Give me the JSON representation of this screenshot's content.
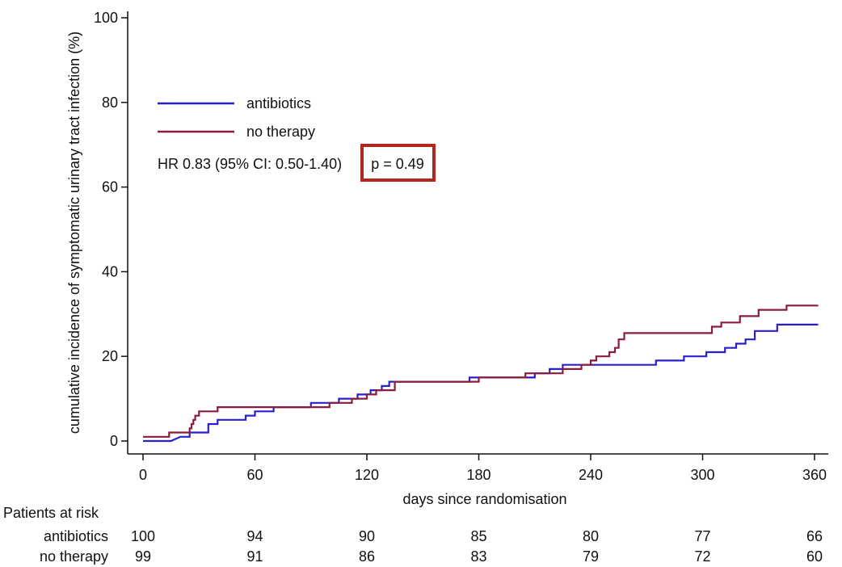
{
  "chart_data": {
    "type": "line",
    "title": "",
    "xlabel": "days since randomisation",
    "ylabel": "cumulative incidence of symptomatic urinary tract infection (%)",
    "xlim": [
      0,
      365
    ],
    "ylim": [
      0,
      100
    ],
    "x_ticks": [
      0,
      60,
      120,
      180,
      240,
      300,
      360
    ],
    "y_ticks": [
      0,
      20,
      40,
      60,
      80,
      100
    ],
    "grid": false,
    "legend_position": "top-left",
    "annotation_text": "HR 0.83 (95% CI: 0.50-1.40)",
    "p_value_text": "p = 0.49",
    "highlight_color": "#b3261e",
    "series": [
      {
        "name": "antibiotics",
        "color": "#2a1fd0",
        "points": [
          [
            0,
            0
          ],
          [
            15,
            0
          ],
          [
            20,
            1
          ],
          [
            25,
            1
          ],
          [
            25,
            2
          ],
          [
            35,
            2
          ],
          [
            35,
            4
          ],
          [
            40,
            4
          ],
          [
            40,
            5
          ],
          [
            55,
            5
          ],
          [
            55,
            6
          ],
          [
            60,
            6
          ],
          [
            60,
            7
          ],
          [
            70,
            7
          ],
          [
            70,
            8
          ],
          [
            90,
            8
          ],
          [
            90,
            9
          ],
          [
            105,
            9
          ],
          [
            105,
            10
          ],
          [
            115,
            10
          ],
          [
            115,
            11
          ],
          [
            122,
            11
          ],
          [
            122,
            12
          ],
          [
            128,
            12
          ],
          [
            128,
            13
          ],
          [
            132,
            13
          ],
          [
            132,
            14
          ],
          [
            175,
            14
          ],
          [
            175,
            15
          ],
          [
            210,
            15
          ],
          [
            210,
            16
          ],
          [
            218,
            16
          ],
          [
            218,
            17
          ],
          [
            225,
            17
          ],
          [
            225,
            18
          ],
          [
            275,
            18
          ],
          [
            275,
            19
          ],
          [
            290,
            19
          ],
          [
            290,
            20
          ],
          [
            302,
            20
          ],
          [
            302,
            21
          ],
          [
            312,
            21
          ],
          [
            312,
            22
          ],
          [
            318,
            22
          ],
          [
            318,
            23
          ],
          [
            323,
            23
          ],
          [
            323,
            24
          ],
          [
            328,
            24
          ],
          [
            328,
            26
          ],
          [
            340,
            26
          ],
          [
            340,
            27.5
          ],
          [
            362,
            27.5
          ]
        ]
      },
      {
        "name": "no therapy",
        "color": "#8b1c3c",
        "points": [
          [
            0,
            1
          ],
          [
            14,
            1
          ],
          [
            14,
            2
          ],
          [
            25,
            2
          ],
          [
            25,
            3
          ],
          [
            26,
            3
          ],
          [
            26,
            4
          ],
          [
            27,
            4
          ],
          [
            27,
            5
          ],
          [
            28,
            5
          ],
          [
            28,
            6
          ],
          [
            30,
            6
          ],
          [
            30,
            7
          ],
          [
            40,
            7
          ],
          [
            40,
            8
          ],
          [
            100,
            8
          ],
          [
            100,
            9
          ],
          [
            112,
            9
          ],
          [
            112,
            10
          ],
          [
            120,
            10
          ],
          [
            120,
            11
          ],
          [
            125,
            11
          ],
          [
            125,
            12
          ],
          [
            135,
            12
          ],
          [
            135,
            14
          ],
          [
            180,
            14
          ],
          [
            180,
            15
          ],
          [
            205,
            15
          ],
          [
            205,
            16
          ],
          [
            225,
            16
          ],
          [
            225,
            17
          ],
          [
            235,
            17
          ],
          [
            235,
            18
          ],
          [
            240,
            18
          ],
          [
            240,
            19
          ],
          [
            243,
            19
          ],
          [
            243,
            20
          ],
          [
            250,
            20
          ],
          [
            250,
            21
          ],
          [
            253,
            21
          ],
          [
            253,
            22
          ],
          [
            255,
            22
          ],
          [
            255,
            24
          ],
          [
            258,
            24
          ],
          [
            258,
            25.5
          ],
          [
            305,
            25.5
          ],
          [
            305,
            27
          ],
          [
            310,
            27
          ],
          [
            310,
            28
          ],
          [
            320,
            28
          ],
          [
            320,
            29.5
          ],
          [
            330,
            29.5
          ],
          [
            330,
            31
          ],
          [
            345,
            31
          ],
          [
            345,
            32
          ],
          [
            362,
            32
          ]
        ]
      }
    ]
  },
  "risk_table": {
    "title": "Patients at risk",
    "rows": [
      {
        "label": "antibiotics",
        "values": [
          "100",
          "94",
          "90",
          "85",
          "80",
          "77",
          "66"
        ]
      },
      {
        "label": "no therapy",
        "values": [
          "99",
          "91",
          "86",
          "83",
          "79",
          "72",
          "60"
        ]
      }
    ]
  }
}
